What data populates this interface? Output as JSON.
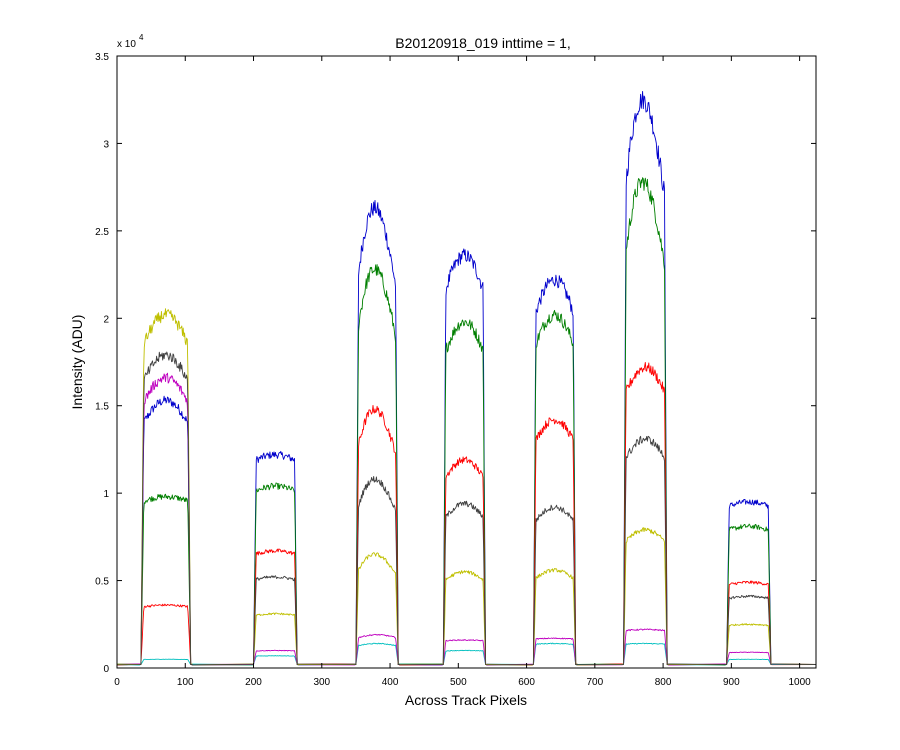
{
  "chart_data": {
    "type": "line",
    "title": "B20120918_019 inttime = 1,",
    "xlabel": "Across Track Pixels",
    "ylabel": "Intensity (ADU)",
    "y_exponent_label": "x 10",
    "y_exponent_power": "4",
    "xlim": [
      0,
      1024
    ],
    "ylim": [
      0,
      3.5
    ],
    "x_ticks": [
      0,
      100,
      200,
      300,
      400,
      500,
      600,
      700,
      800,
      900,
      1000
    ],
    "y_ticks": [
      0,
      0.5,
      1,
      1.5,
      2,
      2.5,
      3,
      3.5
    ],
    "x_tick_labels": [
      "0",
      "100",
      "200",
      "300",
      "400",
      "500",
      "600",
      "700",
      "800",
      "900",
      "1000"
    ],
    "y_tick_labels": [
      "0",
      "0.5",
      "1",
      "1.5",
      "2",
      "2.5",
      "3",
      "3.5"
    ],
    "grid": false,
    "baseline": 0.02,
    "bands": [
      {
        "start": 35,
        "end": 108
      },
      {
        "start": 200,
        "end": 264
      },
      {
        "start": 350,
        "end": 412
      },
      {
        "start": 478,
        "end": 540
      },
      {
        "start": 610,
        "end": 672
      },
      {
        "start": 742,
        "end": 806
      },
      {
        "start": 893,
        "end": 958
      }
    ],
    "series": [
      {
        "color": "#0000cc",
        "peaks": [
          1.53,
          1.22,
          2.63,
          2.36,
          2.22,
          3.25,
          0.95
        ],
        "shape": [
          1,
          0,
          2,
          1,
          1,
          2,
          0
        ]
      },
      {
        "color": "#007f00",
        "peaks": [
          0.98,
          1.04,
          2.28,
          1.98,
          2.02,
          2.78,
          0.81
        ],
        "shape": [
          0,
          0,
          2,
          1,
          1,
          2,
          0
        ]
      },
      {
        "color": "#ff0000",
        "peaks": [
          0.36,
          0.67,
          1.48,
          1.19,
          1.42,
          1.72,
          0.49
        ],
        "shape": [
          0,
          0,
          2,
          1,
          1,
          1,
          0
        ]
      },
      {
        "color": "#00bfbf",
        "peaks": [
          0.05,
          0.07,
          0.14,
          0.1,
          0.14,
          0.14,
          0.05
        ],
        "shape": [
          0,
          0,
          1,
          0,
          0,
          0,
          0
        ]
      },
      {
        "color": "#bf00bf",
        "peaks": [
          1.66,
          0.1,
          0.19,
          0.16,
          0.17,
          0.22,
          0.09
        ],
        "shape": [
          1,
          0,
          1,
          0,
          0,
          0,
          0
        ]
      },
      {
        "color": "#bfbf00",
        "peaks": [
          2.02,
          0.31,
          0.65,
          0.55,
          0.56,
          0.79,
          0.25
        ],
        "shape": [
          1,
          0,
          2,
          1,
          1,
          1,
          0
        ]
      },
      {
        "color": "#404040",
        "peaks": [
          1.79,
          0.52,
          1.08,
          0.94,
          0.92,
          1.31,
          0.41
        ],
        "shape": [
          1,
          0,
          2,
          1,
          1,
          1,
          0
        ]
      }
    ]
  }
}
